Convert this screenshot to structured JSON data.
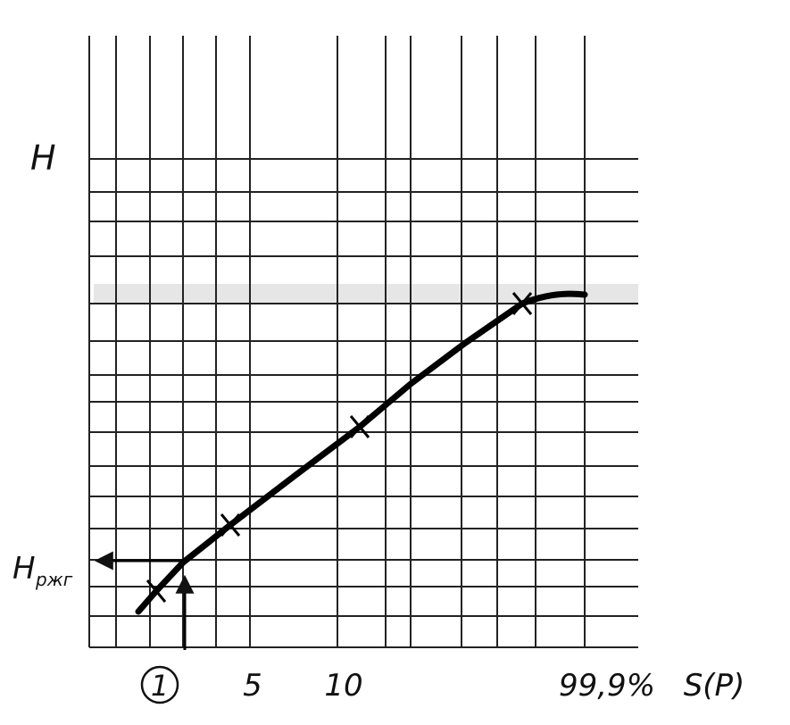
{
  "axes": {
    "y_label": "H",
    "y_marker": {
      "main": "H",
      "sub": "ржг"
    },
    "x_labels": [
      "1",
      "5",
      "10",
      "99,9%"
    ],
    "x_label": "S(P)"
  }
}
